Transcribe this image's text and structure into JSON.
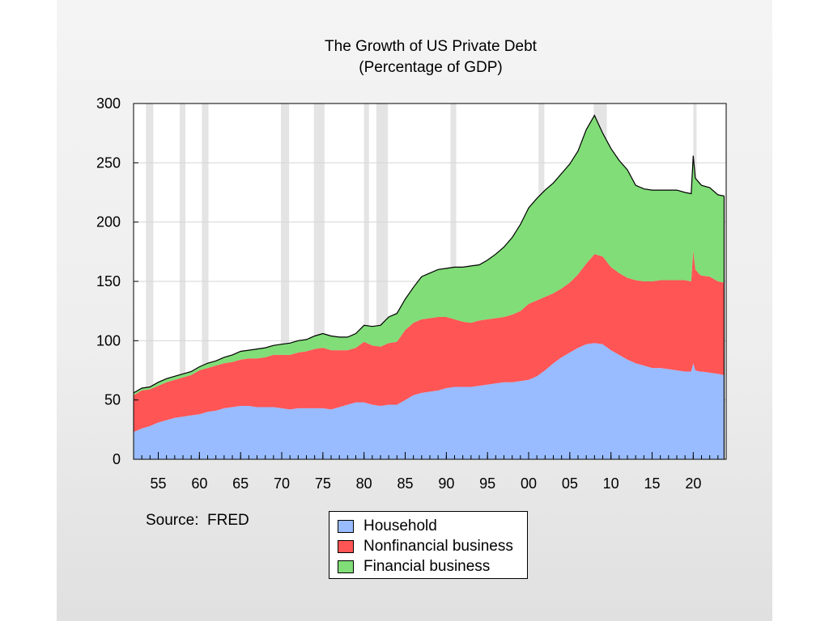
{
  "chart_data": {
    "type": "area",
    "stacked": true,
    "title": "The Growth of US Private Debt",
    "subtitle": "(Percentage of GDP)",
    "xlabel": "",
    "ylabel": "",
    "xlim": [
      1952,
      2024
    ],
    "ylim": [
      0,
      300
    ],
    "y_ticks": [
      0,
      50,
      100,
      150,
      200,
      250,
      300
    ],
    "x_ticks": [
      {
        "year": 1955,
        "label": "55"
      },
      {
        "year": 1960,
        "label": "60"
      },
      {
        "year": 1965,
        "label": "65"
      },
      {
        "year": 1970,
        "label": "70"
      },
      {
        "year": 1975,
        "label": "75"
      },
      {
        "year": 1980,
        "label": "80"
      },
      {
        "year": 1985,
        "label": "85"
      },
      {
        "year": 1990,
        "label": "90"
      },
      {
        "year": 1995,
        "label": "95"
      },
      {
        "year": 2000,
        "label": "00"
      },
      {
        "year": 2005,
        "label": "05"
      },
      {
        "year": 2010,
        "label": "10"
      },
      {
        "year": 2015,
        "label": "15"
      },
      {
        "year": 2020,
        "label": "20"
      }
    ],
    "grid": true,
    "legend_position": "bottom",
    "recession_shading": [
      [
        1953.5,
        1954.4
      ],
      [
        1957.6,
        1958.3
      ],
      [
        1960.3,
        1961.1
      ],
      [
        1969.9,
        1970.9
      ],
      [
        1973.9,
        1975.2
      ],
      [
        1980.0,
        1980.6
      ],
      [
        1981.5,
        1982.9
      ],
      [
        1990.5,
        1991.2
      ],
      [
        2001.2,
        2001.9
      ],
      [
        2007.9,
        2009.5
      ],
      [
        2020.0,
        2020.4
      ]
    ],
    "x": [
      1952,
      1953,
      1954,
      1955,
      1956,
      1957,
      1958,
      1959,
      1960,
      1961,
      1962,
      1963,
      1964,
      1965,
      1966,
      1967,
      1968,
      1969,
      1970,
      1971,
      1972,
      1973,
      1974,
      1975,
      1976,
      1977,
      1978,
      1979,
      1980,
      1981,
      1982,
      1983,
      1984,
      1985,
      1986,
      1987,
      1988,
      1989,
      1990,
      1991,
      1992,
      1993,
      1994,
      1995,
      1996,
      1997,
      1998,
      1999,
      2000,
      2001,
      2002,
      2003,
      2004,
      2005,
      2006,
      2007,
      2008,
      2009,
      2010,
      2011,
      2012,
      2013,
      2014,
      2015,
      2016,
      2017,
      2018,
      2019,
      2019.75,
      2020.0,
      2020.25,
      2020.75,
      2021,
      2022,
      2023,
      2023.75
    ],
    "series": [
      {
        "name": "Household",
        "color": "#99bbff",
        "values": [
          23,
          26,
          28,
          31,
          33,
          35,
          36,
          37,
          38,
          40,
          41,
          43,
          44,
          45,
          45,
          44,
          44,
          44,
          43,
          42,
          43,
          43,
          43,
          43,
          42,
          44,
          46,
          48,
          48,
          46,
          45,
          46,
          46,
          50,
          54,
          56,
          57,
          58,
          60,
          61,
          61,
          61,
          62,
          63,
          64,
          65,
          65,
          66,
          67,
          70,
          75,
          81,
          86,
          90,
          94,
          97,
          98,
          97,
          92,
          88,
          84,
          81,
          79,
          77,
          77,
          76,
          75,
          74,
          74,
          81,
          75,
          74,
          74,
          73,
          72,
          71
        ]
      },
      {
        "name": "Nonfinancial business",
        "color": "#ff5555",
        "values": [
          31,
          32,
          31,
          31,
          32,
          32,
          33,
          34,
          37,
          37,
          38,
          38,
          38,
          39,
          40,
          41,
          42,
          44,
          45,
          46,
          47,
          48,
          50,
          51,
          50,
          48,
          46,
          46,
          51,
          50,
          50,
          52,
          53,
          59,
          61,
          62,
          62,
          62,
          60,
          57,
          55,
          54,
          55,
          55,
          55,
          55,
          57,
          59,
          64,
          64,
          62,
          59,
          58,
          59,
          62,
          68,
          75,
          74,
          70,
          69,
          69,
          70,
          71,
          73,
          74,
          75,
          76,
          77,
          76,
          95,
          85,
          82,
          81,
          81,
          78,
          78
        ]
      },
      {
        "name": "Financial business",
        "color": "#80dd77",
        "values": [
          2,
          2,
          2,
          3,
          3,
          3,
          3,
          3,
          3,
          4,
          4,
          5,
          6,
          7,
          7,
          8,
          8,
          8,
          9,
          10,
          10,
          10,
          11,
          12,
          12,
          11,
          11,
          12,
          14,
          16,
          18,
          22,
          24,
          26,
          30,
          36,
          38,
          40,
          41,
          44,
          46,
          48,
          47,
          50,
          54,
          59,
          65,
          73,
          81,
          86,
          90,
          93,
          97,
          100,
          104,
          113,
          117,
          104,
          100,
          95,
          91,
          80,
          78,
          77,
          76,
          76,
          76,
          74,
          74,
          80,
          77,
          77,
          76,
          75,
          73,
          73
        ]
      }
    ]
  },
  "source": "Source:  FRED",
  "legend": {
    "items": [
      {
        "label": "Household",
        "color": "#99bbff"
      },
      {
        "label": "Nonfinancial business",
        "color": "#ff5555"
      },
      {
        "label": "Financial business",
        "color": "#80dd77"
      }
    ]
  }
}
